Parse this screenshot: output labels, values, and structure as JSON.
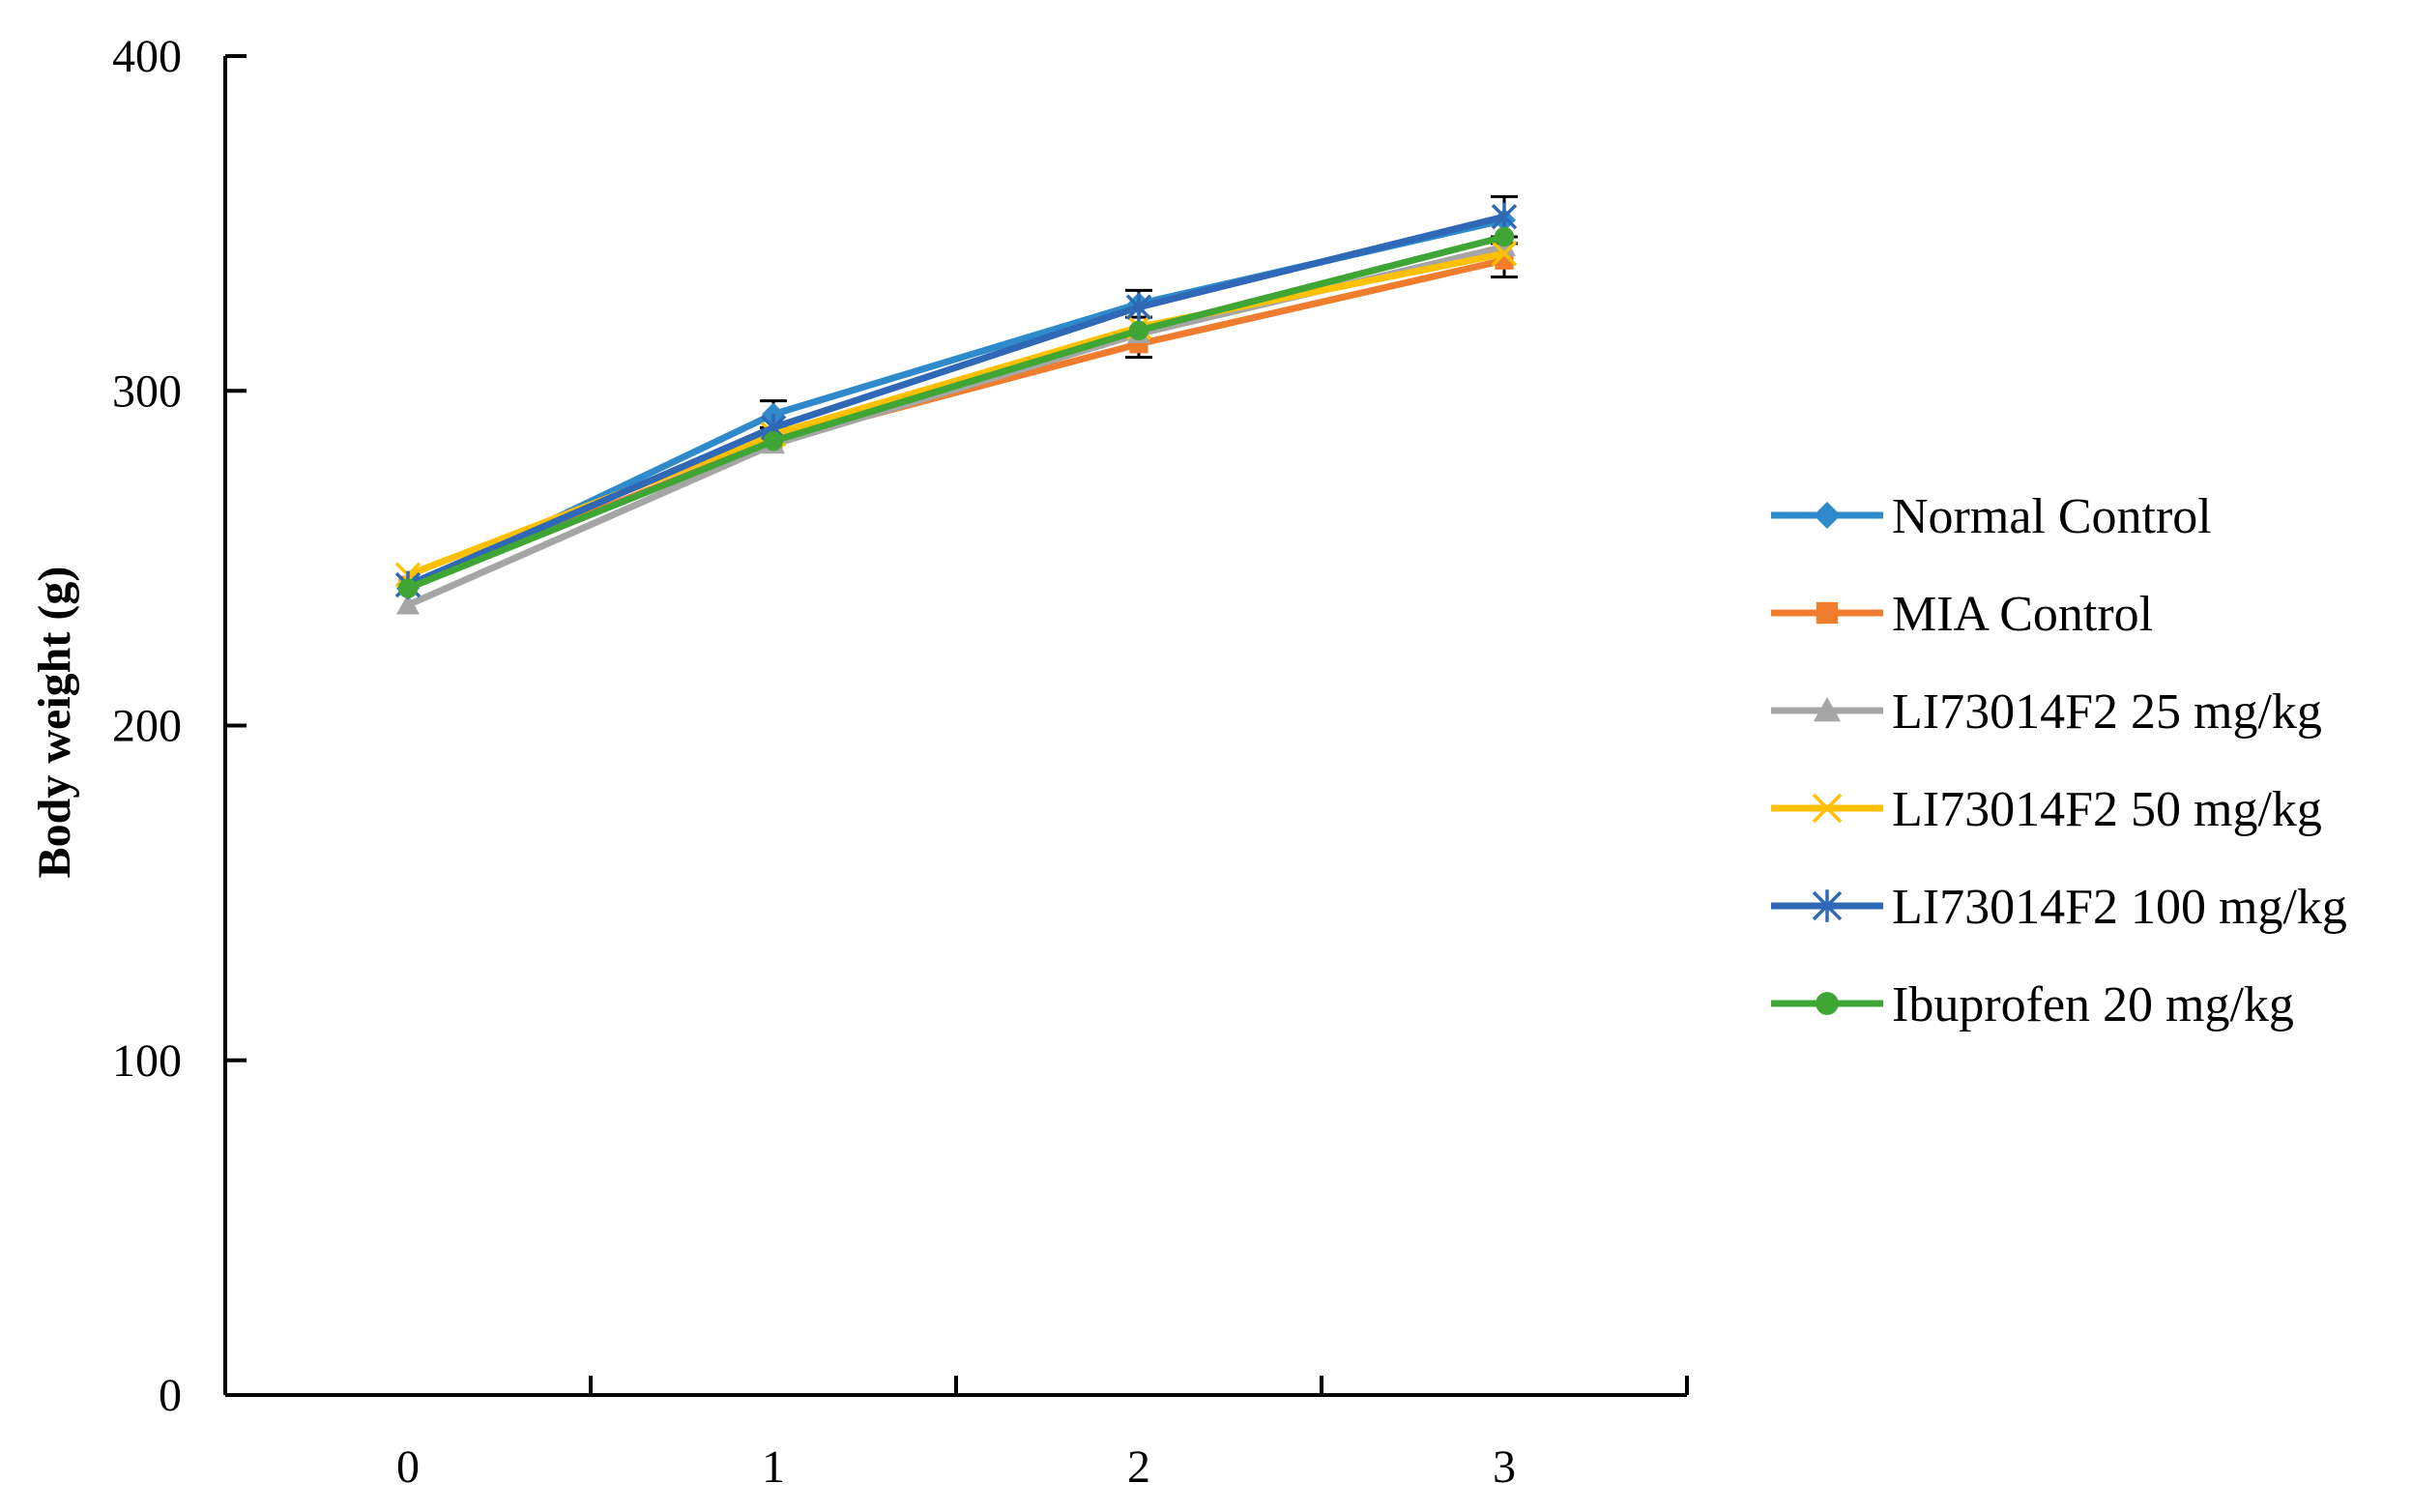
{
  "chart_data": {
    "type": "line",
    "title": "",
    "xlabel": "",
    "ylabel": "Body weight (g)",
    "x": [
      0,
      1,
      2,
      3
    ],
    "x_tick_labels": [
      "0",
      "1",
      "2",
      "3"
    ],
    "xlim": [
      -0.5,
      3.5
    ],
    "ylim": [
      0,
      400
    ],
    "y_ticks": [
      0,
      100,
      200,
      300,
      400
    ],
    "y_tick_labels": [
      "0",
      "100",
      "200",
      "300",
      "400"
    ],
    "grid": false,
    "legend_position": "right",
    "series": [
      {
        "name": "Normal Control",
        "color": "#2E8ACB",
        "marker": "diamond",
        "values": [
          241,
          293,
          326,
          351
        ],
        "error": [
          0,
          4,
          4,
          0
        ]
      },
      {
        "name": "MIA Control",
        "color": "#F07D2D",
        "marker": "square",
        "values": [
          242,
          285,
          314,
          339
        ],
        "error": [
          0,
          0,
          4,
          5
        ]
      },
      {
        "name": "LI73014F2 25 mg/kg",
        "color": "#A5A5A5",
        "marker": "triangle",
        "values": [
          236,
          284,
          317,
          343
        ],
        "error": [
          0,
          0,
          0,
          0
        ]
      },
      {
        "name": "LI73014F2 50 mg/kg",
        "color": "#FFC000",
        "marker": "x",
        "values": [
          245,
          287,
          319,
          341
        ],
        "error": [
          0,
          0,
          0,
          0
        ]
      },
      {
        "name": "LI73014F2 100 mg/kg",
        "color": "#2F68B7",
        "marker": "star",
        "values": [
          242,
          289,
          325,
          352
        ],
        "error": [
          0,
          0,
          0,
          6
        ]
      },
      {
        "name": "Ibuprofen 20 mg/kg",
        "color": "#3FA535",
        "marker": "circle",
        "values": [
          241,
          285,
          318,
          346
        ],
        "error": [
          0,
          0,
          0,
          0
        ]
      }
    ]
  }
}
